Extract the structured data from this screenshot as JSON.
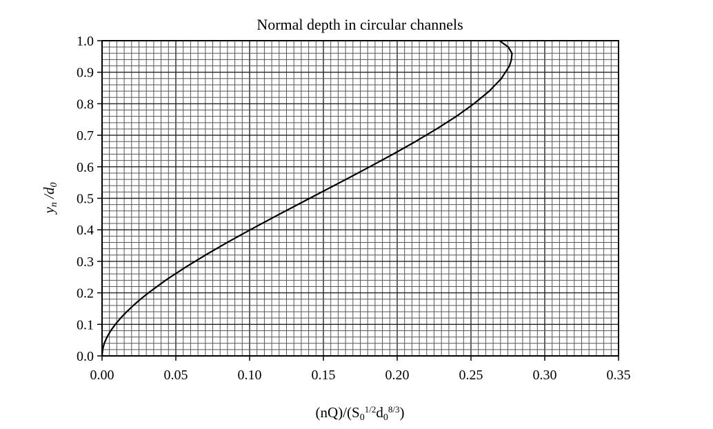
{
  "chart_data": {
    "type": "line",
    "title": "Normal depth in circular channels",
    "xlabel": {
      "parts": [
        {
          "t": "(nQ)/(S",
          "style": "normal"
        },
        {
          "t": "0",
          "style": "sub"
        },
        {
          "t": "1/2",
          "style": "sup"
        },
        {
          "t": "d",
          "style": "normal"
        },
        {
          "t": "0",
          "style": "sub"
        },
        {
          "t": "8/3",
          "style": "sup"
        },
        {
          "t": ")",
          "style": "normal"
        }
      ]
    },
    "ylabel": {
      "parts": [
        {
          "t": "y",
          "style": "normal"
        },
        {
          "t": "n",
          "style": "sub"
        },
        {
          "t": " /d",
          "style": "normal"
        },
        {
          "t": "0",
          "style": "sub"
        }
      ]
    },
    "xlim": [
      0,
      0.35
    ],
    "ylim": [
      0,
      1.0
    ],
    "x_ticks": [
      0.0,
      0.05,
      0.1,
      0.15,
      0.2,
      0.25,
      0.3,
      0.35
    ],
    "x_tick_labels": [
      "0.00",
      "0.05",
      "0.10",
      "0.15",
      "0.20",
      "0.25",
      "0.30",
      "0.35"
    ],
    "y_ticks": [
      0.0,
      0.1,
      0.2,
      0.3,
      0.4,
      0.5,
      0.6,
      0.7,
      0.8,
      0.9,
      1.0
    ],
    "y_tick_labels": [
      "0.0",
      "0.1",
      "0.2",
      "0.3",
      "0.4",
      "0.5",
      "0.6",
      "0.7",
      "0.8",
      "0.9",
      "1.0"
    ],
    "x_minor_step": 0.005,
    "y_minor_step": 0.02,
    "grid": true,
    "series": [
      {
        "color": "#000000",
        "points": [
          [
            0.0,
            0.0
          ],
          [
            0.0004,
            0.02
          ],
          [
            0.0015,
            0.04
          ],
          [
            0.0034,
            0.06
          ],
          [
            0.0059,
            0.08
          ],
          [
            0.009,
            0.1
          ],
          [
            0.0126,
            0.12
          ],
          [
            0.0167,
            0.14
          ],
          [
            0.0212,
            0.16
          ],
          [
            0.0261,
            0.18
          ],
          [
            0.0314,
            0.2
          ],
          [
            0.0431,
            0.24
          ],
          [
            0.0561,
            0.28
          ],
          [
            0.0701,
            0.32
          ],
          [
            0.0849,
            0.36
          ],
          [
            0.1004,
            0.4
          ],
          [
            0.1163,
            0.44
          ],
          [
            0.1326,
            0.48
          ],
          [
            0.1489,
            0.52
          ],
          [
            0.1653,
            0.56
          ],
          [
            0.1814,
            0.6
          ],
          [
            0.1972,
            0.64
          ],
          [
            0.2124,
            0.68
          ],
          [
            0.2267,
            0.72
          ],
          [
            0.2401,
            0.76
          ],
          [
            0.252,
            0.8
          ],
          [
            0.2624,
            0.84
          ],
          [
            0.2706,
            0.88
          ],
          [
            0.2761,
            0.92
          ],
          [
            0.2774,
            0.94
          ],
          [
            0.2778,
            0.96
          ],
          [
            0.2753,
            0.98
          ],
          [
            0.2693,
            1.0
          ]
        ]
      }
    ]
  }
}
